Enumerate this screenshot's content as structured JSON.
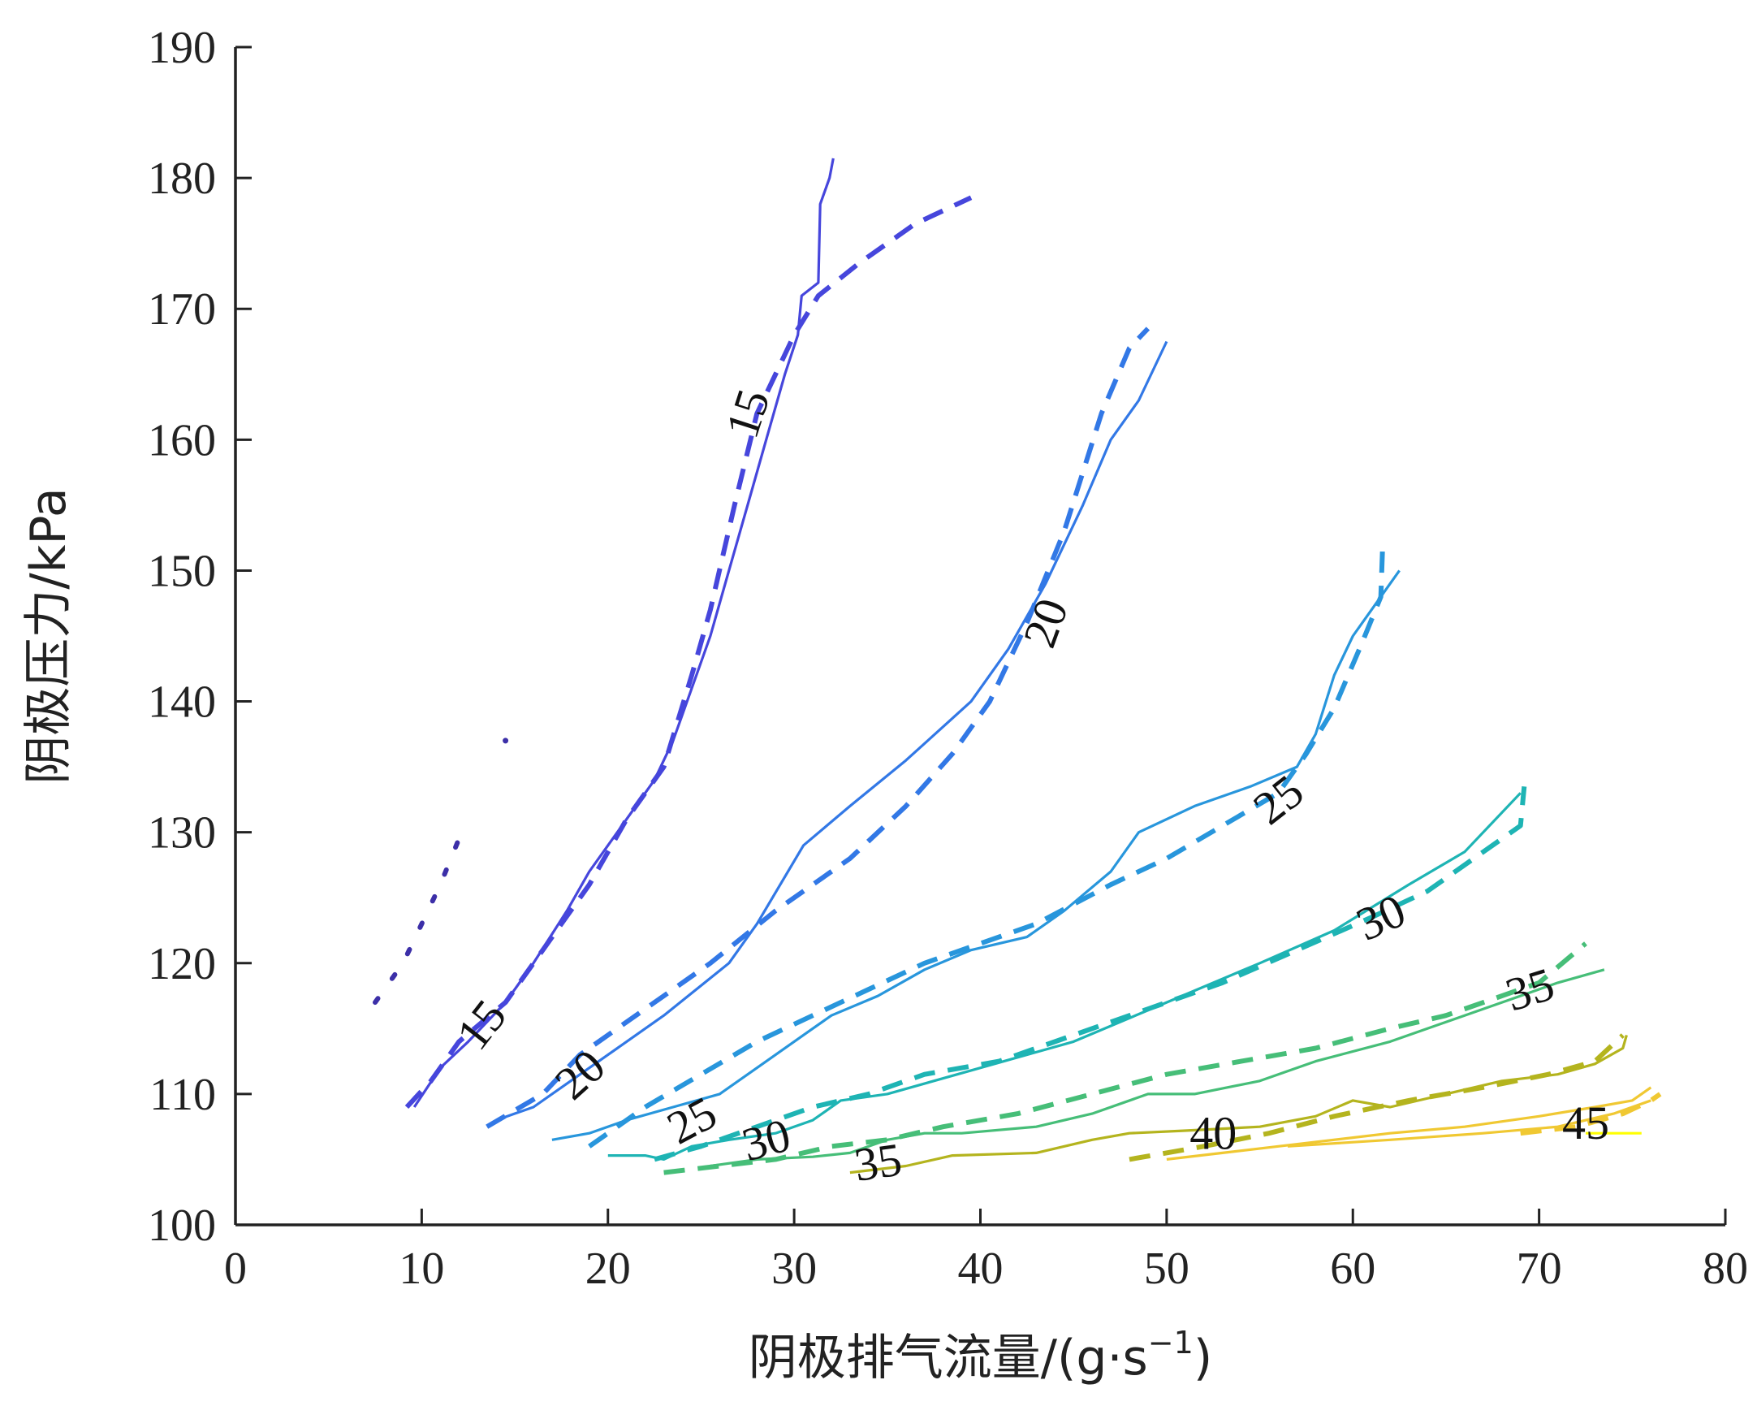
{
  "chart_data": {
    "type": "line",
    "title": "",
    "xlabel": "阴极排气流量/(g·s",
    "xlabel_sup": "−1",
    "xlabel_close": ")",
    "ylabel": "阴极压力/kPa",
    "xlim": [
      0,
      80
    ],
    "ylim": [
      100,
      190
    ],
    "xticks": [
      "0",
      "10",
      "20",
      "30",
      "40",
      "50",
      "60",
      "70",
      "80"
    ],
    "yticks": [
      "100",
      "110",
      "120",
      "130",
      "140",
      "150",
      "160",
      "170",
      "180",
      "190"
    ],
    "grid": false,
    "series": [
      {
        "level": "15",
        "style": "solid",
        "color": "#4646dc",
        "points": [
          [
            9.6,
            109
          ],
          [
            11,
            112
          ],
          [
            12.5,
            114
          ],
          [
            14.5,
            117
          ],
          [
            16,
            120
          ],
          [
            17.8,
            124
          ],
          [
            19,
            127
          ],
          [
            20,
            129
          ],
          [
            21,
            131
          ],
          [
            22.5,
            134
          ],
          [
            23.5,
            137
          ],
          [
            24.5,
            141
          ],
          [
            25.5,
            145
          ],
          [
            26.5,
            150
          ],
          [
            27.5,
            155
          ],
          [
            28.5,
            160
          ],
          [
            29.5,
            165
          ],
          [
            30.2,
            168
          ],
          [
            30.4,
            171
          ],
          [
            31.3,
            172
          ],
          [
            31.4,
            178
          ],
          [
            31.9,
            180
          ],
          [
            32.1,
            181.5
          ]
        ]
      },
      {
        "level": "15",
        "style": "dashed",
        "color": "#4646dc",
        "points": [
          [
            9.2,
            109
          ],
          [
            10.5,
            111
          ],
          [
            12,
            114
          ],
          [
            14.5,
            117
          ],
          [
            16.5,
            121
          ],
          [
            19,
            126
          ],
          [
            21,
            131
          ],
          [
            23,
            135
          ],
          [
            24.5,
            142
          ],
          [
            25.5,
            147
          ],
          [
            26.8,
            155
          ],
          [
            28,
            162
          ],
          [
            29,
            165
          ],
          [
            30,
            168
          ],
          [
            31.3,
            171
          ],
          [
            33.5,
            173.5
          ],
          [
            36.5,
            176.5
          ],
          [
            39.5,
            178.5
          ]
        ]
      },
      {
        "level": "15",
        "style": "dotted",
        "color": "#3c2fa8",
        "points": [
          [
            7.5,
            117
          ],
          [
            9,
            120
          ],
          [
            10,
            123
          ],
          [
            11,
            126
          ],
          [
            12,
            129.5
          ]
        ]
      },
      {
        "level": "15",
        "style": "dotted",
        "color": "#3c2fa8",
        "points": [
          [
            14.5,
            137
          ]
        ]
      },
      {
        "level": "20",
        "style": "solid",
        "color": "#3278e6",
        "points": [
          [
            14,
            108
          ],
          [
            16,
            109
          ],
          [
            18,
            111
          ],
          [
            20,
            113
          ],
          [
            23,
            116
          ],
          [
            26.5,
            120
          ],
          [
            28,
            123
          ],
          [
            30.5,
            129
          ],
          [
            33,
            132
          ],
          [
            36,
            135.5
          ],
          [
            39.5,
            140
          ],
          [
            41.5,
            144
          ],
          [
            43.5,
            149
          ],
          [
            45.5,
            155
          ],
          [
            47,
            160
          ],
          [
            48.5,
            163
          ],
          [
            50,
            167.5
          ]
        ]
      },
      {
        "level": "20",
        "style": "dashed",
        "color": "#3278e6",
        "points": [
          [
            13.5,
            107.5
          ],
          [
            16.5,
            110
          ],
          [
            18.5,
            113
          ],
          [
            21.5,
            116
          ],
          [
            25.5,
            120
          ],
          [
            29,
            124
          ],
          [
            33,
            128
          ],
          [
            36,
            132
          ],
          [
            38.5,
            136
          ],
          [
            40.5,
            140
          ],
          [
            42.5,
            146
          ],
          [
            44.5,
            153
          ],
          [
            46.5,
            162
          ],
          [
            48,
            167
          ],
          [
            49,
            168.5
          ]
        ]
      },
      {
        "level": "25",
        "style": "solid",
        "color": "#2896dc",
        "points": [
          [
            17,
            106.5
          ],
          [
            19,
            107
          ],
          [
            21,
            108
          ],
          [
            23.5,
            109
          ],
          [
            26,
            110
          ],
          [
            28,
            112
          ],
          [
            30,
            114
          ],
          [
            32,
            116
          ],
          [
            34.5,
            117.5
          ],
          [
            37,
            119.5
          ],
          [
            39.5,
            121
          ],
          [
            42.5,
            122
          ],
          [
            44.5,
            124
          ],
          [
            47,
            127
          ],
          [
            48.5,
            130
          ],
          [
            51.5,
            132
          ],
          [
            54.5,
            133.5
          ],
          [
            57,
            135
          ],
          [
            58,
            137.5
          ],
          [
            59,
            142
          ],
          [
            60,
            145
          ],
          [
            61,
            147
          ],
          [
            62.5,
            150
          ]
        ]
      },
      {
        "level": "25",
        "style": "dashed",
        "color": "#2896dc",
        "points": [
          [
            19,
            106
          ],
          [
            20,
            107
          ],
          [
            22,
            109
          ],
          [
            25,
            111.5
          ],
          [
            28,
            114
          ],
          [
            31,
            116
          ],
          [
            34,
            118
          ],
          [
            37,
            120
          ],
          [
            40,
            121.5
          ],
          [
            43,
            123
          ],
          [
            47,
            126
          ],
          [
            50,
            128
          ],
          [
            53,
            130.5
          ],
          [
            56,
            133
          ],
          [
            57.5,
            136
          ],
          [
            59,
            139.5
          ],
          [
            60.5,
            144.5
          ],
          [
            61.5,
            148
          ],
          [
            61.6,
            152
          ]
        ]
      },
      {
        "level": "30",
        "style": "solid",
        "color": "#1eb4b4",
        "points": [
          [
            20,
            105.3
          ],
          [
            22,
            105.3
          ],
          [
            23,
            105
          ],
          [
            24.5,
            106
          ],
          [
            26.5,
            106.5
          ],
          [
            29,
            107
          ],
          [
            31,
            108
          ],
          [
            32.5,
            109.5
          ],
          [
            35,
            110
          ],
          [
            40,
            112
          ],
          [
            45,
            114
          ],
          [
            50,
            117
          ],
          [
            55,
            120
          ],
          [
            59,
            122.5
          ],
          [
            63,
            126
          ],
          [
            66,
            128.5
          ],
          [
            69,
            133
          ]
        ]
      },
      {
        "level": "30",
        "style": "dashed",
        "color": "#1eb4b4",
        "points": [
          [
            22.5,
            105
          ],
          [
            25,
            106
          ],
          [
            28,
            107.5
          ],
          [
            31,
            109
          ],
          [
            34,
            110
          ],
          [
            37,
            111.5
          ],
          [
            41,
            112.5
          ],
          [
            45,
            114.5
          ],
          [
            49,
            116.5
          ],
          [
            53,
            118.5
          ],
          [
            57,
            121
          ],
          [
            61,
            123.5
          ],
          [
            64,
            125.5
          ],
          [
            67,
            128.5
          ],
          [
            69,
            130.5
          ],
          [
            69.2,
            133.5
          ]
        ]
      },
      {
        "level": "35",
        "style": "solid",
        "color": "#46be78",
        "points": [
          [
            25.5,
            104.5
          ],
          [
            28,
            105
          ],
          [
            31,
            105.2
          ],
          [
            33,
            105.5
          ],
          [
            35,
            106.5
          ],
          [
            37,
            107
          ],
          [
            39,
            107
          ],
          [
            43,
            107.5
          ],
          [
            46,
            108.5
          ],
          [
            49,
            110
          ],
          [
            51.5,
            110
          ],
          [
            55,
            111
          ],
          [
            58,
            112.5
          ],
          [
            62,
            114
          ],
          [
            66,
            116
          ],
          [
            69,
            117.5
          ],
          [
            71,
            118.5
          ],
          [
            73.5,
            119.5
          ]
        ]
      },
      {
        "level": "35",
        "style": "dashed",
        "color": "#46be78",
        "points": [
          [
            23,
            104
          ],
          [
            26,
            104.5
          ],
          [
            29,
            105
          ],
          [
            32,
            106
          ],
          [
            35,
            106.5
          ],
          [
            38,
            107.5
          ],
          [
            42,
            108.5
          ],
          [
            46,
            110
          ],
          [
            50,
            111.5
          ],
          [
            54,
            112.5
          ],
          [
            58,
            113.5
          ],
          [
            62,
            115
          ],
          [
            65,
            116
          ],
          [
            68,
            117.5
          ],
          [
            70,
            118.5
          ],
          [
            72.5,
            121.5
          ]
        ]
      },
      {
        "level": "40",
        "style": "solid",
        "color": "#b4b41e",
        "points": [
          [
            33,
            104
          ],
          [
            36,
            104.5
          ],
          [
            38.5,
            105.3
          ],
          [
            43,
            105.5
          ],
          [
            46,
            106.5
          ],
          [
            48,
            107
          ],
          [
            51,
            107.2
          ],
          [
            55,
            107.5
          ],
          [
            58,
            108.3
          ],
          [
            60,
            109.5
          ],
          [
            62,
            109
          ],
          [
            65,
            110
          ],
          [
            68,
            111
          ],
          [
            71,
            111.5
          ],
          [
            73,
            112.3
          ],
          [
            74.5,
            113.5
          ],
          [
            74.7,
            114.5
          ]
        ]
      },
      {
        "level": "40",
        "style": "dashed",
        "color": "#b4b41e",
        "points": [
          [
            48,
            105
          ],
          [
            52,
            106
          ],
          [
            55.5,
            107
          ],
          [
            59,
            108.3
          ],
          [
            63,
            109.5
          ],
          [
            67,
            110.5
          ],
          [
            70.5,
            111.5
          ],
          [
            73,
            112.5
          ],
          [
            74.5,
            114.5
          ]
        ]
      },
      {
        "level": "45",
        "style": "solid",
        "color": "#f0c832",
        "points": [
          [
            50,
            105
          ],
          [
            53,
            105.5
          ],
          [
            56,
            106
          ],
          [
            62,
            107
          ],
          [
            66,
            107.5
          ],
          [
            70,
            108.3
          ],
          [
            73,
            109
          ],
          [
            75,
            109.5
          ],
          [
            76,
            110.5
          ]
        ]
      },
      {
        "level": "45",
        "style": "solid",
        "color": "#f0c832",
        "points": [
          [
            56.5,
            106
          ],
          [
            62,
            106.5
          ],
          [
            67,
            107
          ],
          [
            71,
            107.5
          ],
          [
            74,
            108.5
          ],
          [
            76,
            109.5
          ]
        ]
      },
      {
        "level": "45",
        "style": "dashed",
        "color": "#f0c832",
        "points": [
          [
            69,
            107
          ],
          [
            72,
            107.5
          ],
          [
            74.5,
            108.5
          ],
          [
            76,
            109.5
          ],
          [
            76.5,
            110
          ]
        ]
      },
      {
        "level": "45",
        "style": "solid",
        "color": "#ffff00",
        "points": [
          [
            72.5,
            107
          ],
          [
            75.5,
            107
          ]
        ]
      }
    ],
    "annotations": [
      {
        "text": "15",
        "x": 27.5,
        "y": 162,
        "angle": -72
      },
      {
        "text": "15",
        "x": 13.2,
        "y": 115.3,
        "angle": -52
      },
      {
        "text": "20",
        "x": 43.5,
        "y": 146,
        "angle": -70
      },
      {
        "text": "20",
        "x": 18.5,
        "y": 111.5,
        "angle": -42
      },
      {
        "text": "25",
        "x": 56,
        "y": 132.5,
        "angle": -38
      },
      {
        "text": "25",
        "x": 24.5,
        "y": 108,
        "angle": -28
      },
      {
        "text": "30",
        "x": 61.5,
        "y": 123.5,
        "angle": -24
      },
      {
        "text": "30",
        "x": 28.5,
        "y": 106.5,
        "angle": -15
      },
      {
        "text": "35",
        "x": 69.5,
        "y": 118,
        "angle": -17
      },
      {
        "text": "35",
        "x": 34.5,
        "y": 104.8,
        "angle": -8
      },
      {
        "text": "40",
        "x": 52.5,
        "y": 107,
        "angle": 0
      },
      {
        "text": "45",
        "x": 72.5,
        "y": 107.8,
        "angle": 0
      }
    ]
  }
}
